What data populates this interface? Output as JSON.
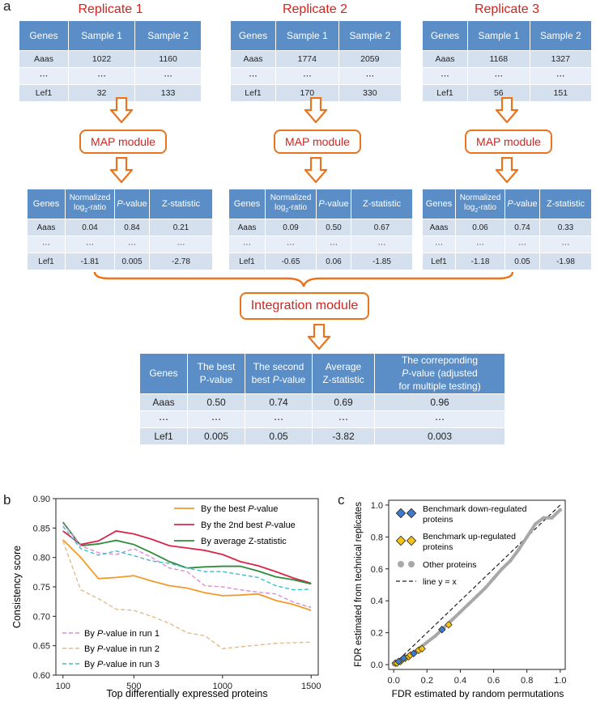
{
  "panel_a": {
    "letter": "a",
    "replicates": [
      {
        "title": "Replicate 1",
        "raw_headers": [
          "Genes",
          "Sample 1",
          "Sample 2"
        ],
        "raw_rows": [
          [
            "Aaas",
            "1022",
            "1160"
          ],
          [
            "⋯",
            "⋯",
            "⋯"
          ],
          [
            "Lef1",
            "32",
            "133"
          ]
        ],
        "module_label": "MAP module",
        "map_headers": [
          "Genes",
          "Normalized",
          "log",
          "2",
          "-ratio",
          "P",
          "-value",
          "Z-statistic"
        ],
        "map_rows": [
          [
            "Aaas",
            "0.04",
            "0.84",
            "0.21"
          ],
          [
            "⋯",
            "⋯",
            "⋯",
            "⋯"
          ],
          [
            "Lef1",
            "-1.81",
            "0.005",
            "-2.78"
          ]
        ]
      },
      {
        "title": "Replicate 2",
        "raw_headers": [
          "Genes",
          "Sample 1",
          "Sample 2"
        ],
        "raw_rows": [
          [
            "Aaas",
            "1774",
            "2059"
          ],
          [
            "⋯",
            "⋯",
            "⋯"
          ],
          [
            "Lef1",
            "170",
            "330"
          ]
        ],
        "module_label": "MAP module",
        "map_headers": [
          "Genes",
          "Normalized",
          "log",
          "2",
          "-ratio",
          "P",
          "-value",
          "Z-statistic"
        ],
        "map_rows": [
          [
            "Aaas",
            "0.09",
            "0.50",
            "0.67"
          ],
          [
            "⋯",
            "⋯",
            "⋯",
            "⋯"
          ],
          [
            "Lef1",
            "-0.65",
            "0.06",
            "-1.85"
          ]
        ]
      },
      {
        "title": "Replicate 3",
        "raw_headers": [
          "Genes",
          "Sample 1",
          "Sample 2"
        ],
        "raw_rows": [
          [
            "Aaas",
            "1168",
            "1327"
          ],
          [
            "⋯",
            "⋯",
            "⋯"
          ],
          [
            "Lef1",
            "56",
            "151"
          ]
        ],
        "module_label": "MAP module",
        "map_headers": [
          "Genes",
          "Normalized",
          "log",
          "2",
          "-ratio",
          "P",
          "-value",
          "Z-statistic"
        ],
        "map_rows": [
          [
            "Aaas",
            "0.06",
            "0.74",
            "0.33"
          ],
          [
            "⋯",
            "⋯",
            "⋯",
            "⋯"
          ],
          [
            "Lef1",
            "-1.18",
            "0.05",
            "-1.98"
          ]
        ]
      }
    ],
    "integration_label": "Integration module",
    "final_headers": {
      "genes": "Genes",
      "best_1": "The best",
      "best_2": "P-value",
      "second_1": "The second",
      "second_2": "best ",
      "second_p": "P",
      "second_3": "-value",
      "avg_1": "Average",
      "avg_2": "Z-statistic",
      "corr_1": "The correponding",
      "corr_p": "P",
      "corr_2": "-value (adjusted",
      "corr_3": "for multiple testing)"
    },
    "final_rows": [
      [
        "Aaas",
        "0.50",
        "0.74",
        "0.69",
        "0.96"
      ],
      [
        "⋯",
        "⋯",
        "⋯",
        "⋯",
        "⋯"
      ],
      [
        "Lef1",
        "0.005",
        "0.05",
        "-3.82",
        "0.003"
      ]
    ]
  },
  "panel_b": {
    "letter": "b",
    "colors": {
      "best": "#f39a2d",
      "second": "#d6264a",
      "avg": "#2e8b3a",
      "run1": "#e08ad6",
      "run2": "#e3bb8c",
      "run3": "#38bfcf"
    },
    "legend": {
      "best_pre": "By the best ",
      "best_p": "P",
      "best_post": "-value",
      "second_pre": "By the 2nd best ",
      "second_p": "P",
      "second_post": "-value",
      "avg": "By average Z-statistic",
      "run1_pre": "By ",
      "run1_p": "P",
      "run1_post": "-value in run 1",
      "run2_pre": "By ",
      "run2_p": "P",
      "run2_post": "-value in run 2",
      "run3_pre": "By ",
      "run3_p": "P",
      "run3_post": "-value in run 3"
    }
  },
  "panel_c": {
    "letter": "c",
    "legend": {
      "down_1": "Benchmark down-regulated",
      "down_2": "proteins",
      "up_1": "Benchmark up-regulated",
      "up_2": "proteins",
      "other": "Other proteins",
      "line": "line y = x"
    },
    "colors": {
      "down": "#3f79c9",
      "up": "#f2c21b",
      "other": "#a8a8a8"
    }
  },
  "chart_data": [
    {
      "type": "line",
      "title": "",
      "xlabel": "Top differentially expressed proteins",
      "ylabel": "Consistency score",
      "xlim": [
        60,
        1540
      ],
      "ylim": [
        0.6,
        0.9
      ],
      "xticks": [
        "100",
        "500",
        "1000",
        "1500"
      ],
      "yticks": [
        "0.60",
        "0.65",
        "0.70",
        "0.75",
        "0.80",
        "0.85",
        "0.90"
      ],
      "x": [
        100,
        200,
        300,
        400,
        500,
        600,
        700,
        800,
        900,
        1000,
        1100,
        1200,
        1300,
        1400,
        1500
      ],
      "series": [
        {
          "name": "By the best P-value",
          "style": "solid",
          "values": [
            0.83,
            0.8,
            0.764,
            0.766,
            0.769,
            0.76,
            0.752,
            0.748,
            0.74,
            0.735,
            0.736,
            0.738,
            0.727,
            0.72,
            0.71
          ]
        },
        {
          "name": "By the 2nd best P-value",
          "style": "solid",
          "values": [
            0.845,
            0.822,
            0.828,
            0.845,
            0.84,
            0.831,
            0.82,
            0.816,
            0.812,
            0.805,
            0.793,
            0.786,
            0.776,
            0.765,
            0.756
          ]
        },
        {
          "name": "By average Z-statistic",
          "style": "solid",
          "values": [
            0.86,
            0.82,
            0.823,
            0.829,
            0.822,
            0.808,
            0.793,
            0.782,
            0.784,
            0.785,
            0.785,
            0.777,
            0.767,
            0.762,
            0.755
          ]
        },
        {
          "name": "By P-value in run 1",
          "style": "dashed",
          "values": [
            0.858,
            0.82,
            0.808,
            0.805,
            0.815,
            0.8,
            0.782,
            0.776,
            0.752,
            0.75,
            0.745,
            0.741,
            0.738,
            0.724,
            0.715
          ]
        },
        {
          "name": "By P-value in run 2",
          "style": "dashed",
          "values": [
            0.828,
            0.745,
            0.73,
            0.712,
            0.71,
            0.7,
            0.688,
            0.672,
            0.667,
            0.645,
            0.648,
            0.651,
            0.654,
            0.655,
            0.656
          ]
        },
        {
          "name": "By P-value in run 3",
          "style": "dashed",
          "values": [
            0.853,
            0.815,
            0.804,
            0.811,
            0.803,
            0.794,
            0.79,
            0.782,
            0.776,
            0.776,
            0.771,
            0.766,
            0.752,
            0.745,
            0.746
          ]
        }
      ]
    },
    {
      "type": "scatter",
      "title": "",
      "xlabel": "FDR estimated by random permutations",
      "ylabel": "FDR estimated from technical replicates",
      "xlim": [
        -0.03,
        1.03
      ],
      "ylim": [
        -0.03,
        1.03
      ],
      "xticks": [
        "0.0",
        "0.2",
        "0.4",
        "0.6",
        "0.8",
        "1.0"
      ],
      "yticks": [
        "0.0",
        "0.2",
        "0.4",
        "0.6",
        "0.8",
        "1.0"
      ],
      "series": [
        {
          "name": "Other proteins",
          "x": [
            0.0,
            0.05,
            0.1,
            0.15,
            0.2,
            0.25,
            0.3,
            0.35,
            0.4,
            0.45,
            0.5,
            0.55,
            0.6,
            0.65,
            0.7,
            0.75,
            0.8,
            0.85,
            0.9,
            0.95,
            1.0
          ],
          "y": [
            0.0,
            0.03,
            0.06,
            0.1,
            0.14,
            0.18,
            0.23,
            0.28,
            0.33,
            0.38,
            0.43,
            0.48,
            0.54,
            0.6,
            0.65,
            0.72,
            0.8,
            0.88,
            0.92,
            0.92,
            0.97
          ]
        },
        {
          "name": "Benchmark down-regulated proteins",
          "x": [
            0.03,
            0.06,
            0.12,
            0.29
          ],
          "y": [
            0.02,
            0.04,
            0.07,
            0.22
          ]
        },
        {
          "name": "Benchmark up-regulated proteins",
          "x": [
            0.01,
            0.02,
            0.04,
            0.05,
            0.07,
            0.09,
            0.1,
            0.15,
            0.17,
            0.33
          ],
          "y": [
            0.01,
            0.01,
            0.02,
            0.03,
            0.04,
            0.05,
            0.06,
            0.09,
            0.1,
            0.25
          ]
        },
        {
          "name": "line y = x",
          "x": [
            0,
            1
          ],
          "y": [
            0,
            1
          ]
        }
      ]
    }
  ]
}
